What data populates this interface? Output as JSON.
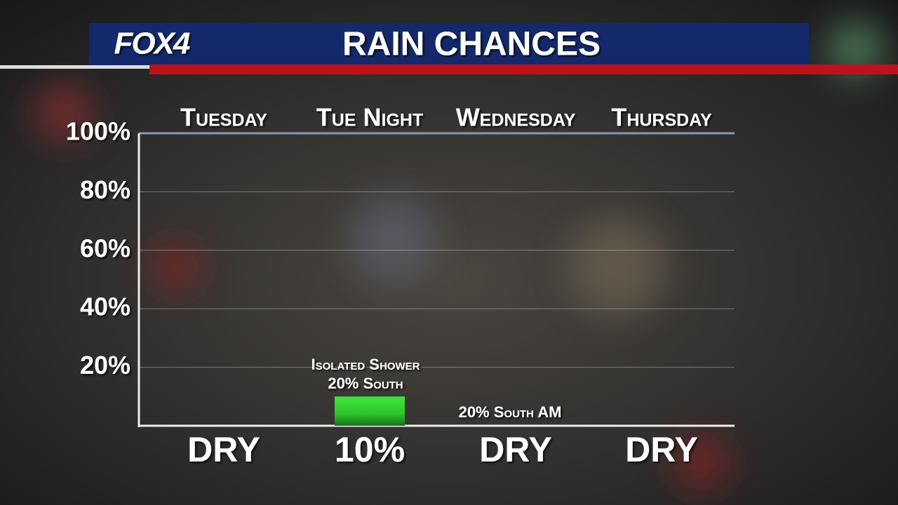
{
  "brand": "FOX4",
  "chart_data": {
    "type": "bar",
    "title": "RAIN CHANCES",
    "categories": [
      "Tuesday",
      "Tue Night",
      "Wednesday",
      "Thursday"
    ],
    "values": [
      0,
      10,
      0,
      0
    ],
    "value_labels": [
      "DRY",
      "10%",
      "DRY",
      "DRY"
    ],
    "color": "#3ee63a",
    "ylim": [
      0,
      100
    ],
    "yticks": [
      {
        "value": 20,
        "label": "20%"
      },
      {
        "value": 40,
        "label": "40%"
      },
      {
        "value": 60,
        "label": "60%"
      },
      {
        "value": 80,
        "label": "80%"
      },
      {
        "value": 100,
        "label": "100%"
      }
    ],
    "grid": true,
    "annotations": [
      "Isolated Shower",
      "20% South",
      "20% South AM"
    ]
  }
}
